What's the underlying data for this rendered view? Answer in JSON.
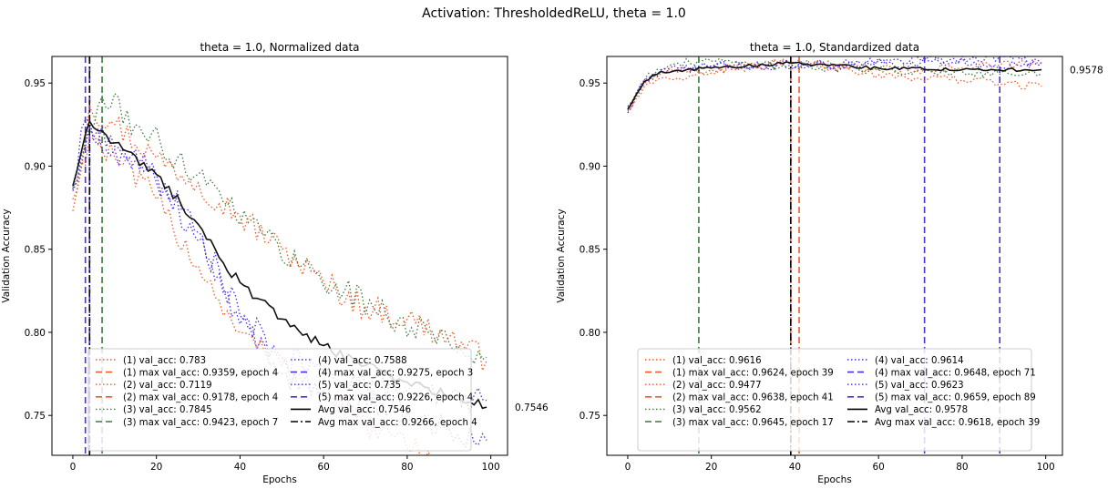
{
  "suptitle": "Activation: ThresholdedReLU, theta = 1.0",
  "chart_data": [
    {
      "type": "line",
      "title": "theta = 1.0, Normalized data",
      "xlabel": "Epochs",
      "ylabel": "Validation Accuracy",
      "xlim": [
        -5,
        104
      ],
      "ylim": [
        0.726,
        0.966
      ],
      "xticks": [
        0,
        20,
        40,
        60,
        80,
        100
      ],
      "yticks": [
        0.75,
        0.8,
        0.85,
        0.9,
        0.95
      ],
      "ytick_labels": [
        "0.75",
        "0.80",
        "0.85",
        "0.90",
        "0.95"
      ],
      "avg_label": "0.7546",
      "legend_loc": "lower center",
      "runs": [
        {
          "color": "#ef5b2b",
          "val_label": "(1) val_acc: 0.783",
          "max_label": "(1) max val_acc: 0.9359, epoch 4",
          "max_epoch": 4,
          "kp": [
            [
              0,
              0.873
            ],
            [
              4,
              0.936
            ],
            [
              10,
              0.925
            ],
            [
              20,
              0.905
            ],
            [
              30,
              0.89
            ],
            [
              40,
              0.87
            ],
            [
              50,
              0.85
            ],
            [
              60,
              0.83
            ],
            [
              70,
              0.815
            ],
            [
              80,
              0.808
            ],
            [
              90,
              0.797
            ],
            [
              99,
              0.783
            ]
          ]
        },
        {
          "color": "#ef5b2b",
          "val_label": "(2) val_acc: 0.7119",
          "max_label": "(2) max val_acc: 0.9178, epoch 4",
          "max_epoch": 4,
          "kp": [
            [
              0,
              0.88
            ],
            [
              4,
              0.918
            ],
            [
              10,
              0.905
            ],
            [
              20,
              0.88
            ],
            [
              30,
              0.84
            ],
            [
              40,
              0.8
            ],
            [
              50,
              0.78
            ],
            [
              60,
              0.765
            ],
            [
              70,
              0.745
            ],
            [
              80,
              0.73
            ],
            [
              90,
              0.718
            ],
            [
              99,
              0.712
            ]
          ]
        },
        {
          "color": "#3d7a3d",
          "val_label": "(3) val_acc: 0.7845",
          "max_label": "(3) max val_acc: 0.9423, epoch 7",
          "max_epoch": 7,
          "kp": [
            [
              0,
              0.887
            ],
            [
              7,
              0.942
            ],
            [
              15,
              0.925
            ],
            [
              25,
              0.905
            ],
            [
              35,
              0.885
            ],
            [
              45,
              0.86
            ],
            [
              55,
              0.84
            ],
            [
              65,
              0.825
            ],
            [
              75,
              0.81
            ],
            [
              85,
              0.8
            ],
            [
              92,
              0.792
            ],
            [
              99,
              0.785
            ]
          ]
        },
        {
          "color": "#4b2fe0",
          "val_label": "(4) val_acc: 0.7588",
          "max_label": "(4) max val_acc: 0.9275, epoch 3",
          "max_epoch": 3,
          "kp": [
            [
              0,
              0.886
            ],
            [
              3,
              0.928
            ],
            [
              10,
              0.912
            ],
            [
              20,
              0.895
            ],
            [
              30,
              0.86
            ],
            [
              40,
              0.81
            ],
            [
              50,
              0.785
            ],
            [
              60,
              0.775
            ],
            [
              70,
              0.77
            ],
            [
              80,
              0.765
            ],
            [
              90,
              0.76
            ],
            [
              99,
              0.759
            ]
          ]
        },
        {
          "color": "#4b2fe0",
          "val_label": "(5) val_acc: 0.735",
          "max_label": "(5) max val_acc: 0.9226, epoch 4",
          "max_epoch": 4,
          "kp": [
            [
              0,
              0.885
            ],
            [
              4,
              0.923
            ],
            [
              10,
              0.91
            ],
            [
              20,
              0.89
            ],
            [
              30,
              0.855
            ],
            [
              40,
              0.805
            ],
            [
              50,
              0.775
            ],
            [
              60,
              0.765
            ],
            [
              70,
              0.76
            ],
            [
              80,
              0.752
            ],
            [
              90,
              0.742
            ],
            [
              99,
              0.735
            ]
          ]
        }
      ],
      "avg": {
        "val_label": "Avg val_acc: 0.7546",
        "max_label": "Avg max val_acc: 0.9266, epoch 4",
        "max_epoch": 4,
        "kp": [
          [
            0,
            0.888
          ],
          [
            4,
            0.927
          ],
          [
            10,
            0.914
          ],
          [
            20,
            0.895
          ],
          [
            30,
            0.865
          ],
          [
            35,
            0.845
          ],
          [
            40,
            0.83
          ],
          [
            50,
            0.808
          ],
          [
            60,
            0.792
          ],
          [
            70,
            0.78
          ],
          [
            80,
            0.77
          ],
          [
            90,
            0.762
          ],
          [
            99,
            0.755
          ]
        ]
      }
    },
    {
      "type": "line",
      "title": "theta = 1.0, Standardized data",
      "xlabel": "Epochs",
      "ylabel": "Validation Accuracy",
      "xlim": [
        -5,
        104
      ],
      "ylim": [
        0.726,
        0.966
      ],
      "xticks": [
        0,
        20,
        40,
        60,
        80,
        100
      ],
      "yticks": [
        0.75,
        0.8,
        0.85,
        0.9,
        0.95
      ],
      "ytick_labels": [
        "0.75",
        "0.80",
        "0.85",
        "0.90",
        "0.95"
      ],
      "avg_label": "0.9578",
      "legend_loc": "lower center",
      "runs": [
        {
          "color": "#ef5b2b",
          "val_label": "(1) val_acc: 0.9616",
          "max_label": "(1) max val_acc: 0.9624, epoch 39",
          "max_epoch": 39,
          "kp": [
            [
              0,
              0.934
            ],
            [
              4,
              0.95
            ],
            [
              8,
              0.956
            ],
            [
              20,
              0.958
            ],
            [
              39,
              0.962
            ],
            [
              60,
              0.958
            ],
            [
              80,
              0.959
            ],
            [
              99,
              0.962
            ]
          ]
        },
        {
          "color": "#ef5b2b",
          "val_label": "(2) val_acc: 0.9477",
          "max_label": "(2) max val_acc: 0.9638, epoch 41",
          "max_epoch": 41,
          "kp": [
            [
              0,
              0.933
            ],
            [
              4,
              0.948
            ],
            [
              8,
              0.953
            ],
            [
              20,
              0.956
            ],
            [
              41,
              0.964
            ],
            [
              60,
              0.955
            ],
            [
              80,
              0.952
            ],
            [
              99,
              0.948
            ]
          ]
        },
        {
          "color": "#3d7a3d",
          "val_label": "(3) val_acc: 0.9562",
          "max_label": "(3) max val_acc: 0.9645, epoch 17",
          "max_epoch": 17,
          "kp": [
            [
              0,
              0.935
            ],
            [
              4,
              0.952
            ],
            [
              8,
              0.958
            ],
            [
              17,
              0.964
            ],
            [
              40,
              0.96
            ],
            [
              60,
              0.958
            ],
            [
              80,
              0.957
            ],
            [
              99,
              0.956
            ]
          ]
        },
        {
          "color": "#4b2fe0",
          "val_label": "(4) val_acc: 0.9614",
          "max_label": "(4) max val_acc: 0.9648, epoch 71",
          "max_epoch": 71,
          "kp": [
            [
              0,
              0.932
            ],
            [
              4,
              0.951
            ],
            [
              8,
              0.958
            ],
            [
              20,
              0.96
            ],
            [
              50,
              0.961
            ],
            [
              71,
              0.965
            ],
            [
              85,
              0.961
            ],
            [
              99,
              0.961
            ]
          ]
        },
        {
          "color": "#4b2fe0",
          "val_label": "(5) val_acc: 0.9623",
          "max_label": "(5) max val_acc: 0.9659, epoch 89",
          "max_epoch": 89,
          "kp": [
            [
              0,
              0.936
            ],
            [
              4,
              0.952
            ],
            [
              8,
              0.958
            ],
            [
              20,
              0.96
            ],
            [
              50,
              0.961
            ],
            [
              70,
              0.962
            ],
            [
              89,
              0.966
            ],
            [
              99,
              0.962
            ]
          ]
        }
      ],
      "avg": {
        "val_label": "Avg val_acc: 0.9578",
        "max_label": "Avg max val_acc: 0.9618, epoch 39",
        "max_epoch": 39,
        "kp": [
          [
            0,
            0.934
          ],
          [
            4,
            0.951
          ],
          [
            8,
            0.957
          ],
          [
            20,
            0.959
          ],
          [
            39,
            0.962
          ],
          [
            60,
            0.959
          ],
          [
            80,
            0.958
          ],
          [
            99,
            0.958
          ]
        ]
      }
    }
  ]
}
